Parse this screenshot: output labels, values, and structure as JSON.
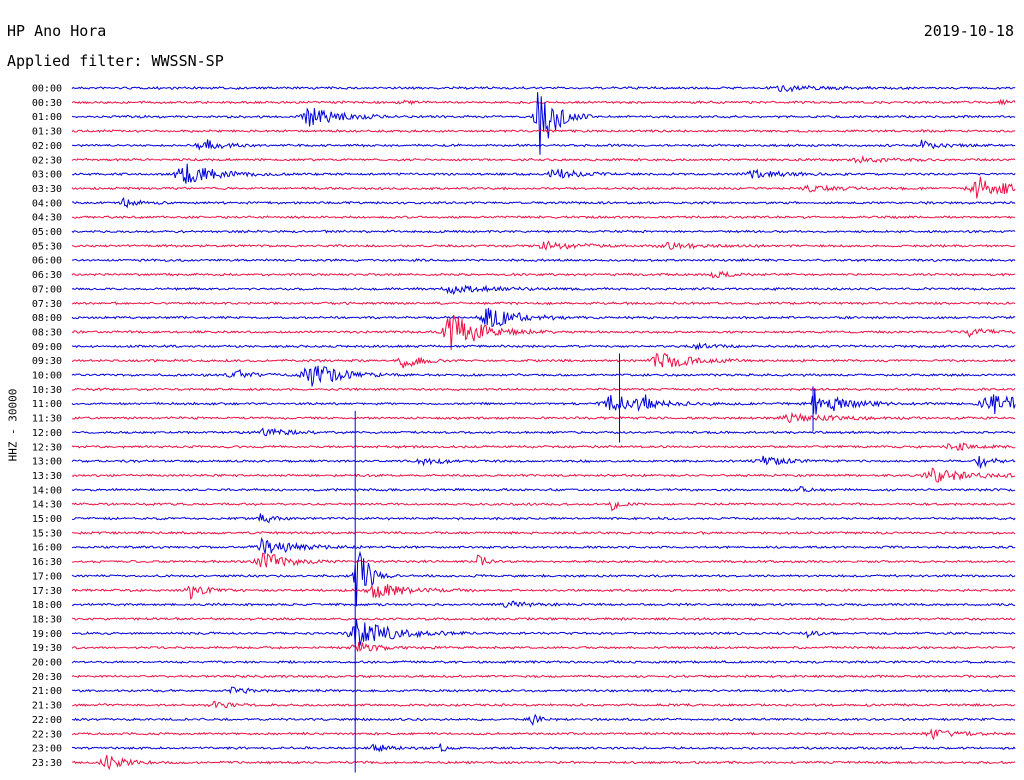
{
  "header": {
    "station": "HP Ano Hora",
    "date": "2019-10-18",
    "filter": "Applied filter: WWSSN-SP"
  },
  "chart_data": {
    "type": "line",
    "title": "HP Ano Hora",
    "subtitle": "Applied filter: WWSSN-SP",
    "ylabel": "HHZ - 30000",
    "ticks": [
      "00:00",
      "00:30",
      "01:00",
      "01:30",
      "02:00",
      "02:30",
      "03:00",
      "03:30",
      "04:00",
      "04:30",
      "05:00",
      "05:30",
      "06:00",
      "06:30",
      "07:00",
      "07:30",
      "08:00",
      "08:30",
      "09:00",
      "09:30",
      "10:00",
      "10:30",
      "11:00",
      "11:30",
      "12:00",
      "12:30",
      "13:00",
      "13:30",
      "14:00",
      "14:30",
      "15:00",
      "15:30",
      "16:00",
      "16:30",
      "17:00",
      "17:30",
      "18:00",
      "18:30",
      "19:00",
      "19:30",
      "20:00",
      "20:30",
      "21:00",
      "21:30",
      "22:00",
      "22:30",
      "23:00",
      "23:30"
    ],
    "colors": [
      "#0000dd",
      "#ee1144"
    ],
    "events": [
      {
        "row": 0,
        "x": 0.75,
        "amp": 3,
        "dur": 0.05
      },
      {
        "row": 1,
        "x": 0.35,
        "amp": 2,
        "dur": 0.02
      },
      {
        "row": 1,
        "x": 0.98,
        "amp": 2,
        "dur": 0.02
      },
      {
        "row": 2,
        "x": 0.25,
        "amp": 10,
        "dur": 0.04
      },
      {
        "row": 2,
        "x": 0.494,
        "amp": 45,
        "dur": 0.02
      },
      {
        "row": 4,
        "x": 0.135,
        "amp": 8,
        "dur": 0.025
      },
      {
        "row": 4,
        "x": 0.9,
        "amp": 5,
        "dur": 0.025
      },
      {
        "row": 5,
        "x": 0.83,
        "amp": 3,
        "dur": 0.04
      },
      {
        "row": 6,
        "x": 0.115,
        "amp": 14,
        "dur": 0.04
      },
      {
        "row": 6,
        "x": 0.51,
        "amp": 6,
        "dur": 0.03
      },
      {
        "row": 6,
        "x": 0.72,
        "amp": 4,
        "dur": 0.04
      },
      {
        "row": 7,
        "x": 0.96,
        "amp": 12,
        "dur": 0.05
      },
      {
        "row": 7,
        "x": 0.78,
        "amp": 3,
        "dur": 0.05
      },
      {
        "row": 8,
        "x": 0.055,
        "amp": 5,
        "dur": 0.02
      },
      {
        "row": 11,
        "x": 0.5,
        "amp": 4,
        "dur": 0.05
      },
      {
        "row": 11,
        "x": 0.63,
        "amp": 3,
        "dur": 0.05
      },
      {
        "row": 13,
        "x": 0.68,
        "amp": 4,
        "dur": 0.02
      },
      {
        "row": 14,
        "x": 0.4,
        "amp": 4,
        "dur": 0.06
      },
      {
        "row": 16,
        "x": 0.44,
        "amp": 12,
        "dur": 0.04
      },
      {
        "row": 17,
        "x": 0.4,
        "amp": 22,
        "dur": 0.04
      },
      {
        "row": 17,
        "x": 0.95,
        "amp": 4,
        "dur": 0.03
      },
      {
        "row": 18,
        "x": 0.66,
        "amp": 4,
        "dur": 0.02
      },
      {
        "row": 19,
        "x": 0.35,
        "amp": 10,
        "dur": 0.02
      },
      {
        "row": 19,
        "x": 0.62,
        "amp": 10,
        "dur": 0.04
      },
      {
        "row": 20,
        "x": 0.25,
        "amp": 14,
        "dur": 0.04
      },
      {
        "row": 20,
        "x": 0.17,
        "amp": 6,
        "dur": 0.025
      },
      {
        "row": 22,
        "x": 0.57,
        "amp": 9,
        "dur": 0.05
      },
      {
        "row": 22,
        "x": 0.8,
        "amp": 8,
        "dur": 0.04
      },
      {
        "row": 22,
        "x": 0.97,
        "amp": 12,
        "dur": 0.05
      },
      {
        "row": 22,
        "x": 0.6,
        "amp": 32,
        "dur": 0.006
      },
      {
        "row": 22,
        "x": 0.785,
        "amp": 28,
        "dur": 0.006
      },
      {
        "row": 23,
        "x": 0.76,
        "amp": 4,
        "dur": 0.06
      },
      {
        "row": 24,
        "x": 0.2,
        "amp": 5,
        "dur": 0.03
      },
      {
        "row": 25,
        "x": 0.93,
        "amp": 5,
        "dur": 0.03
      },
      {
        "row": 26,
        "x": 0.37,
        "amp": 6,
        "dur": 0.02
      },
      {
        "row": 26,
        "x": 0.73,
        "amp": 5,
        "dur": 0.03
      },
      {
        "row": 26,
        "x": 0.96,
        "amp": 7,
        "dur": 0.02
      },
      {
        "row": 27,
        "x": 0.91,
        "amp": 8,
        "dur": 0.05
      },
      {
        "row": 28,
        "x": 0.77,
        "amp": 6,
        "dur": 0.01
      },
      {
        "row": 29,
        "x": 0.57,
        "amp": 8,
        "dur": 0.01
      },
      {
        "row": 30,
        "x": 0.2,
        "amp": 8,
        "dur": 0.015
      },
      {
        "row": 32,
        "x": 0.2,
        "amp": 8,
        "dur": 0.05
      },
      {
        "row": 33,
        "x": 0.2,
        "amp": 12,
        "dur": 0.03
      },
      {
        "row": 33,
        "x": 0.43,
        "amp": 8,
        "dur": 0.01
      },
      {
        "row": 34,
        "x": 0.3,
        "amp": 45,
        "dur": 0.015
      },
      {
        "row": 35,
        "x": 0.32,
        "amp": 9,
        "dur": 0.04
      },
      {
        "row": 35,
        "x": 0.125,
        "amp": 8,
        "dur": 0.02
      },
      {
        "row": 36,
        "x": 0.46,
        "amp": 4,
        "dur": 0.03
      },
      {
        "row": 38,
        "x": 0.3,
        "amp": 14,
        "dur": 0.05
      },
      {
        "row": 38,
        "x": 0.78,
        "amp": 7,
        "dur": 0.01
      },
      {
        "row": 39,
        "x": 0.3,
        "amp": 6,
        "dur": 0.03
      },
      {
        "row": 42,
        "x": 0.17,
        "amp": 4,
        "dur": 0.02
      },
      {
        "row": 43,
        "x": 0.15,
        "amp": 4,
        "dur": 0.02
      },
      {
        "row": 44,
        "x": 0.484,
        "amp": 10,
        "dur": 0.01
      },
      {
        "row": 45,
        "x": 0.91,
        "amp": 5,
        "dur": 0.03
      },
      {
        "row": 46,
        "x": 0.32,
        "amp": 5,
        "dur": 0.02
      },
      {
        "row": 46,
        "x": 0.39,
        "amp": 4,
        "dur": 0.01
      },
      {
        "row": 47,
        "x": 0.035,
        "amp": 7,
        "dur": 0.03
      }
    ],
    "vlines": [
      {
        "x": 0.3,
        "from_row": 22.5,
        "to_row": 47.7
      },
      {
        "x": 0.58,
        "from_row": 18.5,
        "to_row": 24.7
      },
      {
        "x": 0.785,
        "from_row": 20.8,
        "to_row": 23.9
      }
    ]
  }
}
